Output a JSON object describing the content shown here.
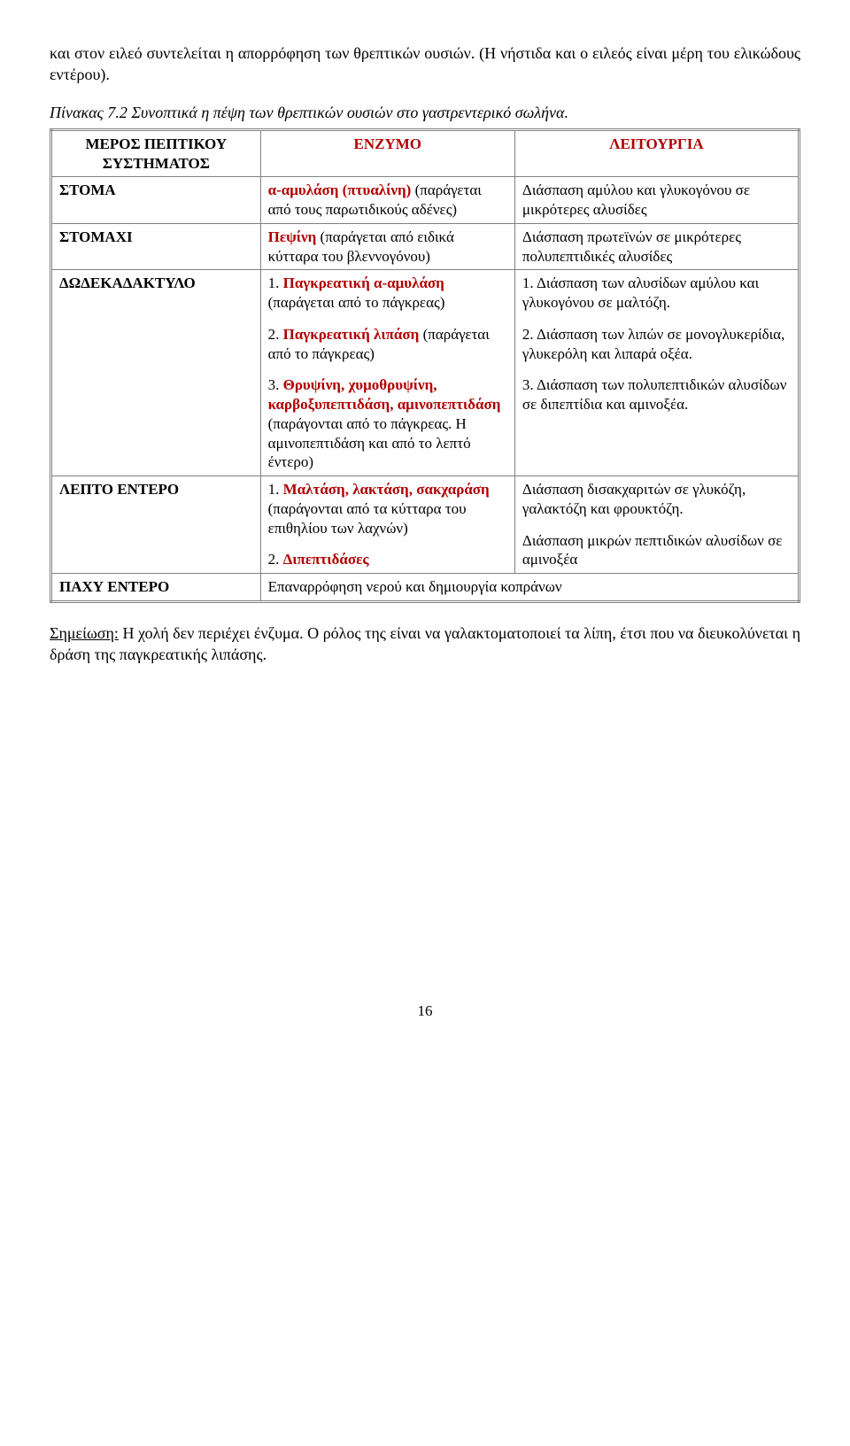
{
  "intro": "και στον ειλεό συντελείται η απορρόφηση των θρεπτικών ουσιών. (Η νήστιδα και ο ειλεός είναι μέρη του ελικώδους εντέρου).",
  "caption": "Πίνακας 7.2 Συνοπτικά η πέψη των θρεπτικών ουσιών στο γαστρεντερικό σωλήνα.",
  "headers": {
    "col1_line1": "ΜΕΡΟΣ ΠΕΠΤΙΚΟΥ",
    "col1_line2": "ΣΥΣΤΗΜΑΤΟΣ",
    "col2": "ΕΝΖΥΜΟ",
    "col3": "ΛΕΙΤΟΥΡΓΙΑ"
  },
  "rows": {
    "stoma": {
      "part": "ΣΤΟΜΑ",
      "enzyme_name": "α-αμυλάση (πτυαλίνη)",
      "enzyme_rest": "(παράγεται από τους παρωτιδικούς αδένες)",
      "func": "Διάσπαση αμύλου και γλυκογόνου σε μικρότερες αλυσίδες"
    },
    "stomaxi": {
      "part": "ΣΤΟΜΑΧΙ",
      "enzyme_name": "Πεψίνη",
      "enzyme_rest": " (παράγεται από ειδικά κύτταρα του βλεννογόνου)",
      "func": "Διάσπαση πρωτεϊνών σε μικρότερες πολυπεπτιδικές αλυσίδες"
    },
    "dodeka": {
      "part": "ΔΩΔΕΚΑΔΑΚΤΥΛΟ",
      "e1_num": "1. ",
      "e1_name": "Παγκρεατική α-αμυλάση",
      "e1_rest": " (παράγεται από το πάγκρεας)",
      "f1": "1. Διάσπαση των αλυσίδων αμύλου και γλυκογόνου σε μαλτόζη.",
      "e2_num": "2. ",
      "e2_name": "Παγκρεατική λιπάση",
      "e2_rest": "(παράγεται από το πάγκρεας)",
      "f2": "2. Διάσπαση των λιπών σε μονογλυκερίδια, γλυκερόλη και λιπαρά οξέα.",
      "e3_num": "3. ",
      "e3_name": "Θρυψίνη, χυμοθρυψί­νη, καρβοξυπεπτιδάση, αμινοπεπτιδάση",
      "e3_rest": "(παράγονται από το πάγ­κρεας. Η αμινοπεπτιδάση και από το λεπτό έντερο)",
      "f3": "3. Διάσπαση των πολυπεπτιδικών αλυσίδων σε διπεπτίδια και αμινοξέα."
    },
    "lepto": {
      "part": "ΛΕΠΤΟ ΕΝΤΕΡΟ",
      "e1_num": "1. ",
      "e1_name": "Μαλτάση, λακτάση, σακχαράση",
      "e1_rest": "(παράγονται από τα κύτταρα του επιθηλίου των λαχνών)",
      "f1": "Διάσπαση δισακχαριτών σε γλυκόζη, γαλακτόζη και φρουκτόζη.",
      "e2_num": "2. ",
      "e2_name": "Διπεπτιδάσες",
      "f2": "Διάσπαση μικρών πεπτιδικών αλυσίδων σε αμινοξέα"
    },
    "paxy": {
      "part": "ΠΑΧΥ ΕΝΤΕΡΟ",
      "merged": "Επαναρρόφηση νερού και δημιουργία κοπράνων"
    }
  },
  "note_label": "Σημείωση:",
  "note_rest": " Η χολή δεν περιέχει ένζυμα. Ο ρόλος της είναι να γαλακτοματοποιεί τα λίπη, έτσι που να διευκολύνεται η δράση της παγκρεατικής λιπάσης.",
  "page_number": "16",
  "colors": {
    "enzyme_red": "#b00000",
    "border_gray": "#808080"
  }
}
